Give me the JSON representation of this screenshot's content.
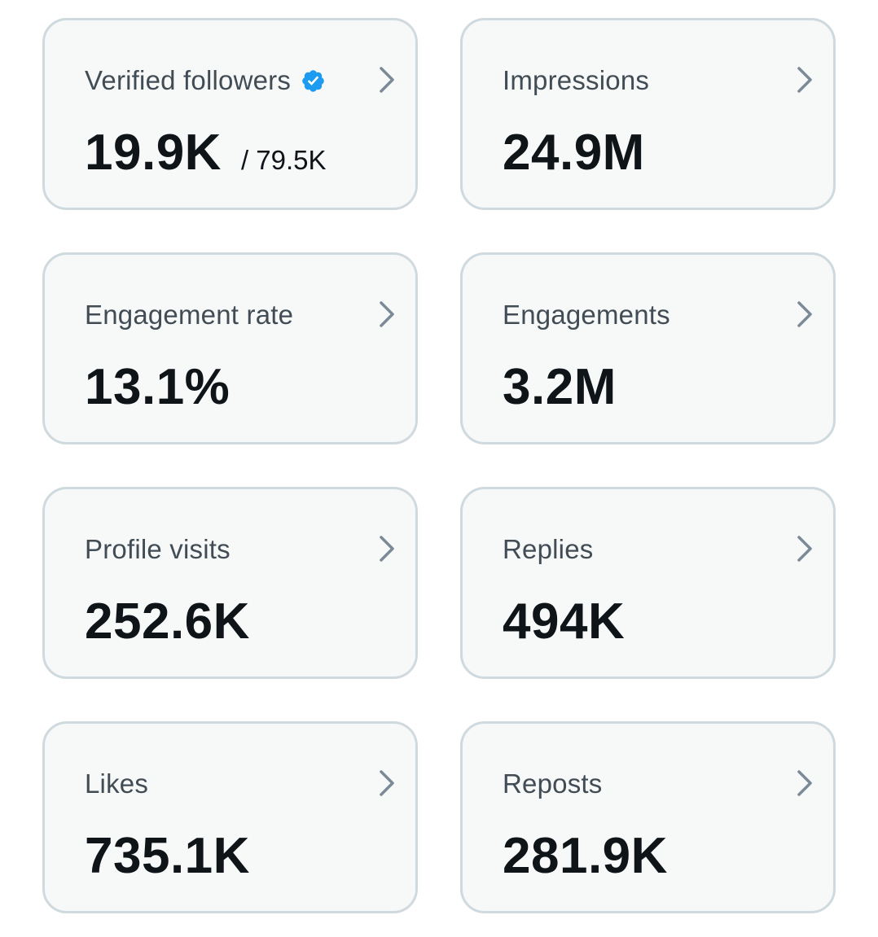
{
  "cards": [
    {
      "label": "Verified followers",
      "value": "19.9K",
      "sub": "/ 79.5K"
    },
    {
      "label": "Impressions",
      "value": "24.9M"
    },
    {
      "label": "Engagement rate",
      "value": "13.1%"
    },
    {
      "label": "Engagements",
      "value": "3.2M"
    },
    {
      "label": "Profile visits",
      "value": "252.6K"
    },
    {
      "label": "Replies",
      "value": "494K"
    },
    {
      "label": "Likes",
      "value": "735.1K"
    },
    {
      "label": "Reposts",
      "value": "281.9K"
    }
  ],
  "icons": {
    "verified_badge": "verified-badge-icon",
    "chevron": "chevron-right-icon"
  },
  "colors": {
    "card_background": "#f7f9f9",
    "card_border": "#cfd9de",
    "label_text": "#414c55",
    "value_text": "#0f1419",
    "chevron": "#7b8a96",
    "verified_blue": "#1d9bf0"
  }
}
